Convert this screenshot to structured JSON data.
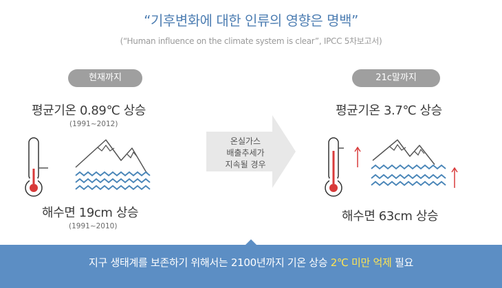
{
  "header": {
    "title": "“기후변화에 대한 인류의 영향은 명백”",
    "subtitle": "(“Human influence on the climate system is clear”, IPCC 5차보고서)"
  },
  "current": {
    "label": "현재까지",
    "temp_text": "평균기온 0.89℃ 상승",
    "temp_period": "(1991~2012)",
    "sea_text": "해수면 19cm 상승",
    "sea_period": "(1991~2010)"
  },
  "transition": {
    "lines": [
      "온실가스",
      "배출추세가",
      "지속될 경우"
    ]
  },
  "future": {
    "label": "21c말까지",
    "temp_text": "평균기온 3.7℃ 상승",
    "sea_text": "해수면 63cm 상승"
  },
  "banner": {
    "before": "지구 생태계를 보존하기 위해서는 2100년까지 기온 상승 ",
    "highlight": "2℃ 미만 억제",
    "after": " 필요"
  },
  "colors": {
    "accent_blue": "#5c8ec4",
    "title_blue": "#4f7fb3",
    "thermo_red": "#d83a3a",
    "wave_blue": "#4a86b8",
    "pill_gray": "#9f9f9f",
    "highlight_yellow": "#ffe552"
  }
}
